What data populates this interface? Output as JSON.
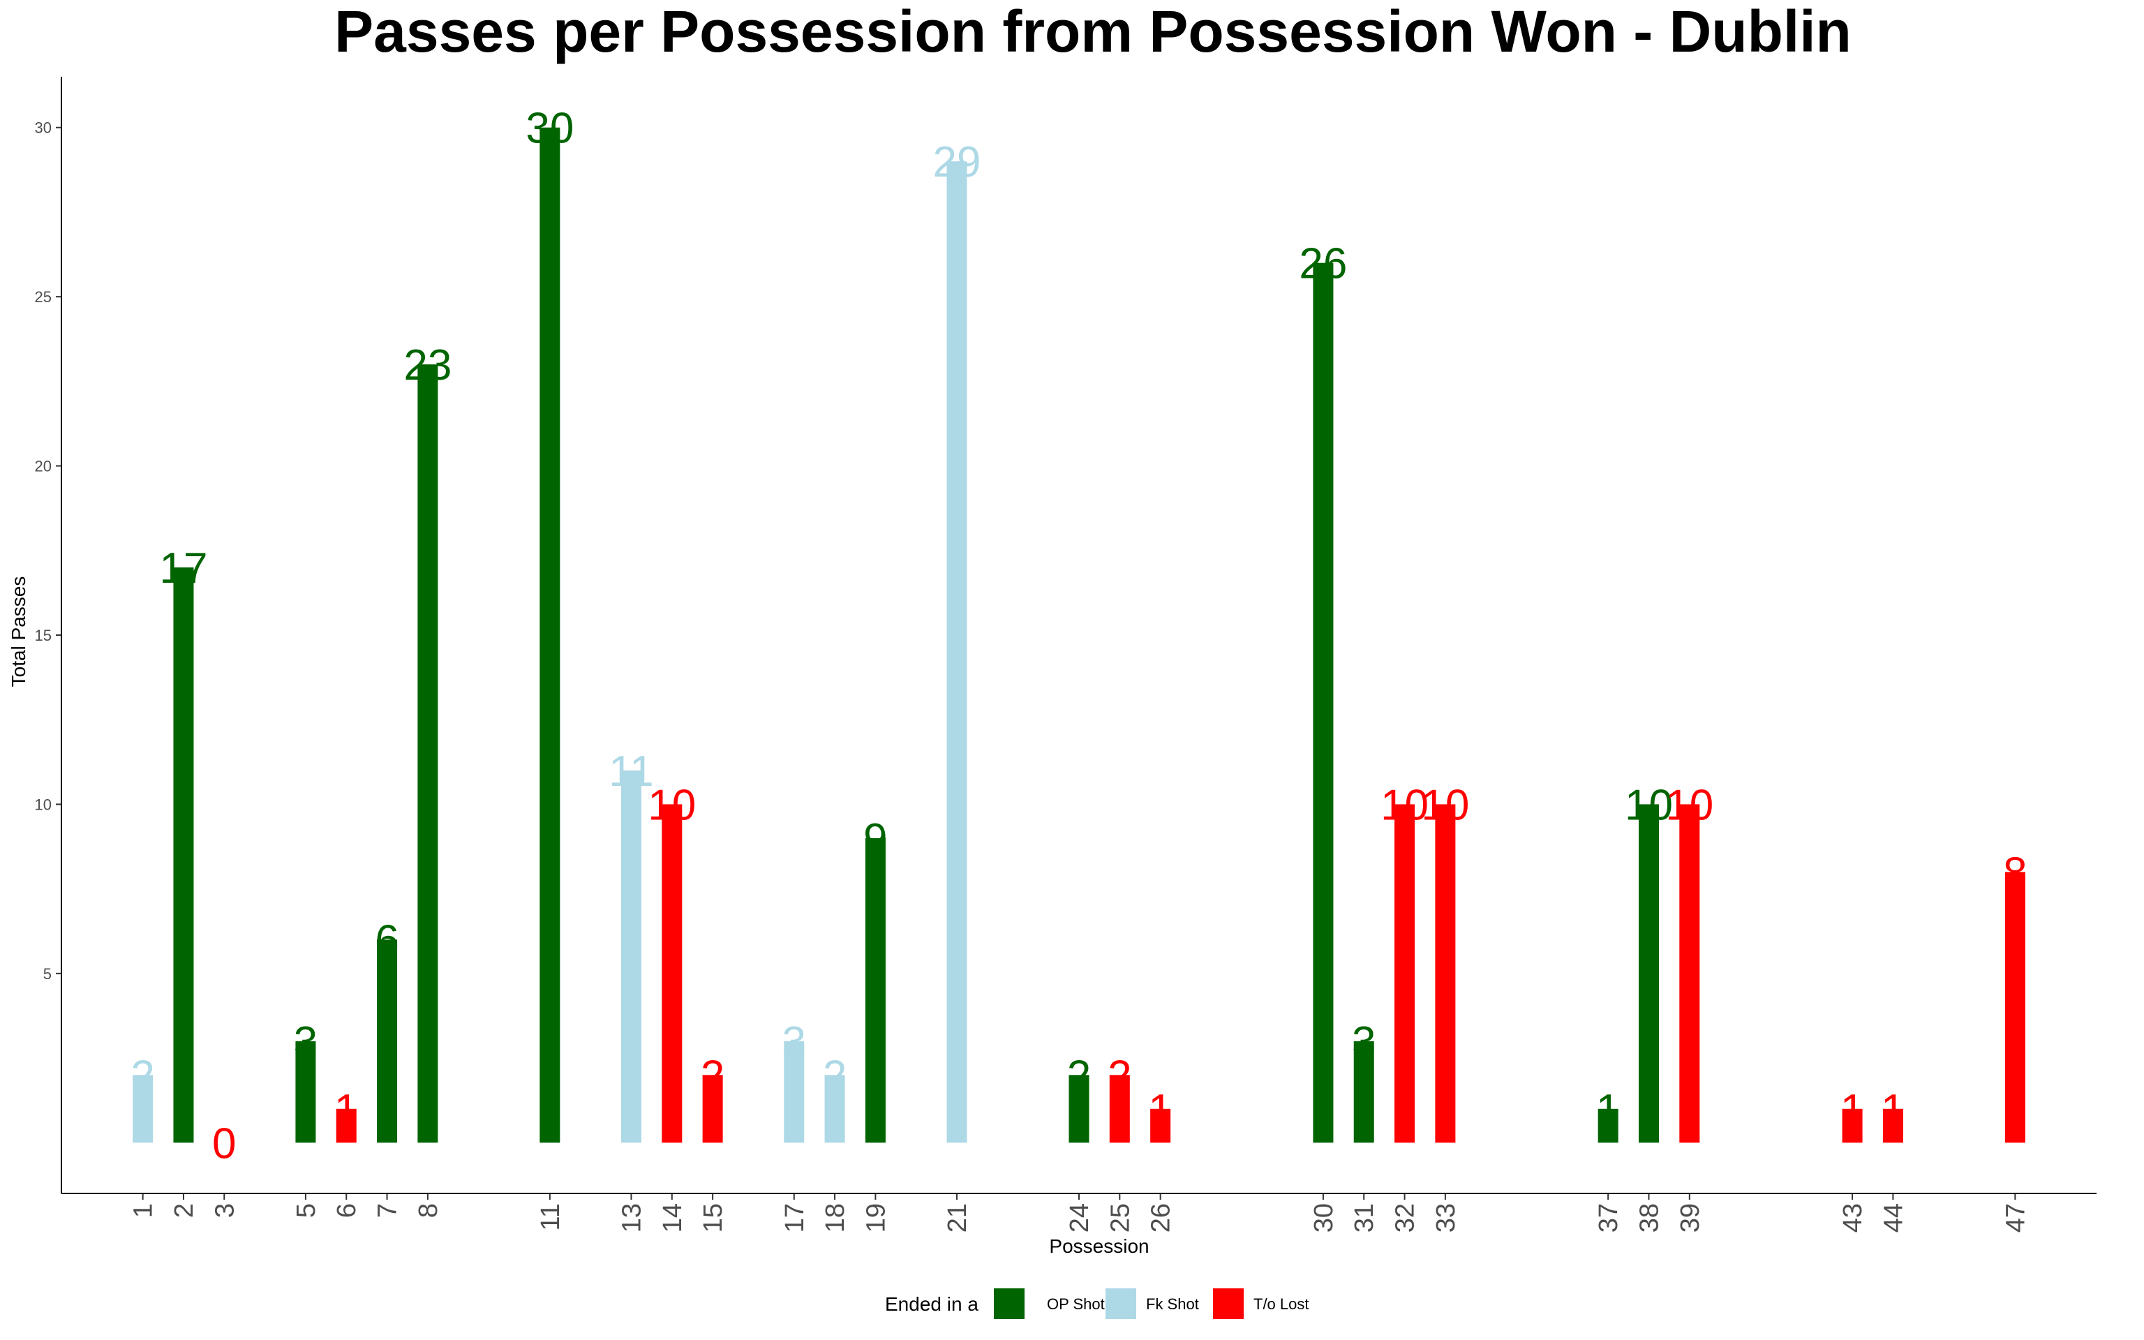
{
  "chart_data": {
    "type": "bar",
    "title": "Passes per Possession from Possession Won - Dublin",
    "xlabel": "Possession",
    "ylabel": "Total Passes",
    "x_range": [
      -1,
      49
    ],
    "ylim": [
      -1.5,
      31.5
    ],
    "yticks": [
      5,
      10,
      15,
      20,
      25,
      30
    ],
    "legend": {
      "title": "Ended in a",
      "position": "bottom",
      "entries": [
        {
          "name": "OP Shot",
          "color": "#006400"
        },
        {
          "name": "Fk Shot",
          "color": "#ADD8E6"
        },
        {
          "name": "T/o Lost",
          "color": "#FF0000"
        }
      ]
    },
    "bars": [
      {
        "x": 1,
        "value": 2,
        "group": "Fk Shot"
      },
      {
        "x": 2,
        "value": 17,
        "group": "OP Shot"
      },
      {
        "x": 3,
        "value": 0,
        "group": "T/o Lost"
      },
      {
        "x": 5,
        "value": 3,
        "group": "OP Shot"
      },
      {
        "x": 6,
        "value": 1,
        "group": "T/o Lost"
      },
      {
        "x": 7,
        "value": 6,
        "group": "OP Shot"
      },
      {
        "x": 8,
        "value": 23,
        "group": "OP Shot"
      },
      {
        "x": 11,
        "value": 30,
        "group": "OP Shot"
      },
      {
        "x": 13,
        "value": 11,
        "group": "Fk Shot"
      },
      {
        "x": 14,
        "value": 10,
        "group": "T/o Lost"
      },
      {
        "x": 15,
        "value": 2,
        "group": "T/o Lost"
      },
      {
        "x": 17,
        "value": 3,
        "group": "Fk Shot"
      },
      {
        "x": 18,
        "value": 2,
        "group": "Fk Shot"
      },
      {
        "x": 19,
        "value": 9,
        "group": "OP Shot"
      },
      {
        "x": 21,
        "value": 29,
        "group": "Fk Shot"
      },
      {
        "x": 24,
        "value": 2,
        "group": "OP Shot"
      },
      {
        "x": 25,
        "value": 2,
        "group": "T/o Lost"
      },
      {
        "x": 26,
        "value": 1,
        "group": "T/o Lost"
      },
      {
        "x": 30,
        "value": 26,
        "group": "OP Shot"
      },
      {
        "x": 31,
        "value": 3,
        "group": "OP Shot"
      },
      {
        "x": 32,
        "value": 10,
        "group": "T/o Lost"
      },
      {
        "x": 33,
        "value": 10,
        "group": "T/o Lost"
      },
      {
        "x": 37,
        "value": 1,
        "group": "OP Shot"
      },
      {
        "x": 38,
        "value": 10,
        "group": "OP Shot"
      },
      {
        "x": 39,
        "value": 10,
        "group": "T/o Lost"
      },
      {
        "x": 43,
        "value": 1,
        "group": "T/o Lost"
      },
      {
        "x": 44,
        "value": 1,
        "group": "T/o Lost"
      },
      {
        "x": 47,
        "value": 8,
        "group": "T/o Lost"
      }
    ]
  }
}
